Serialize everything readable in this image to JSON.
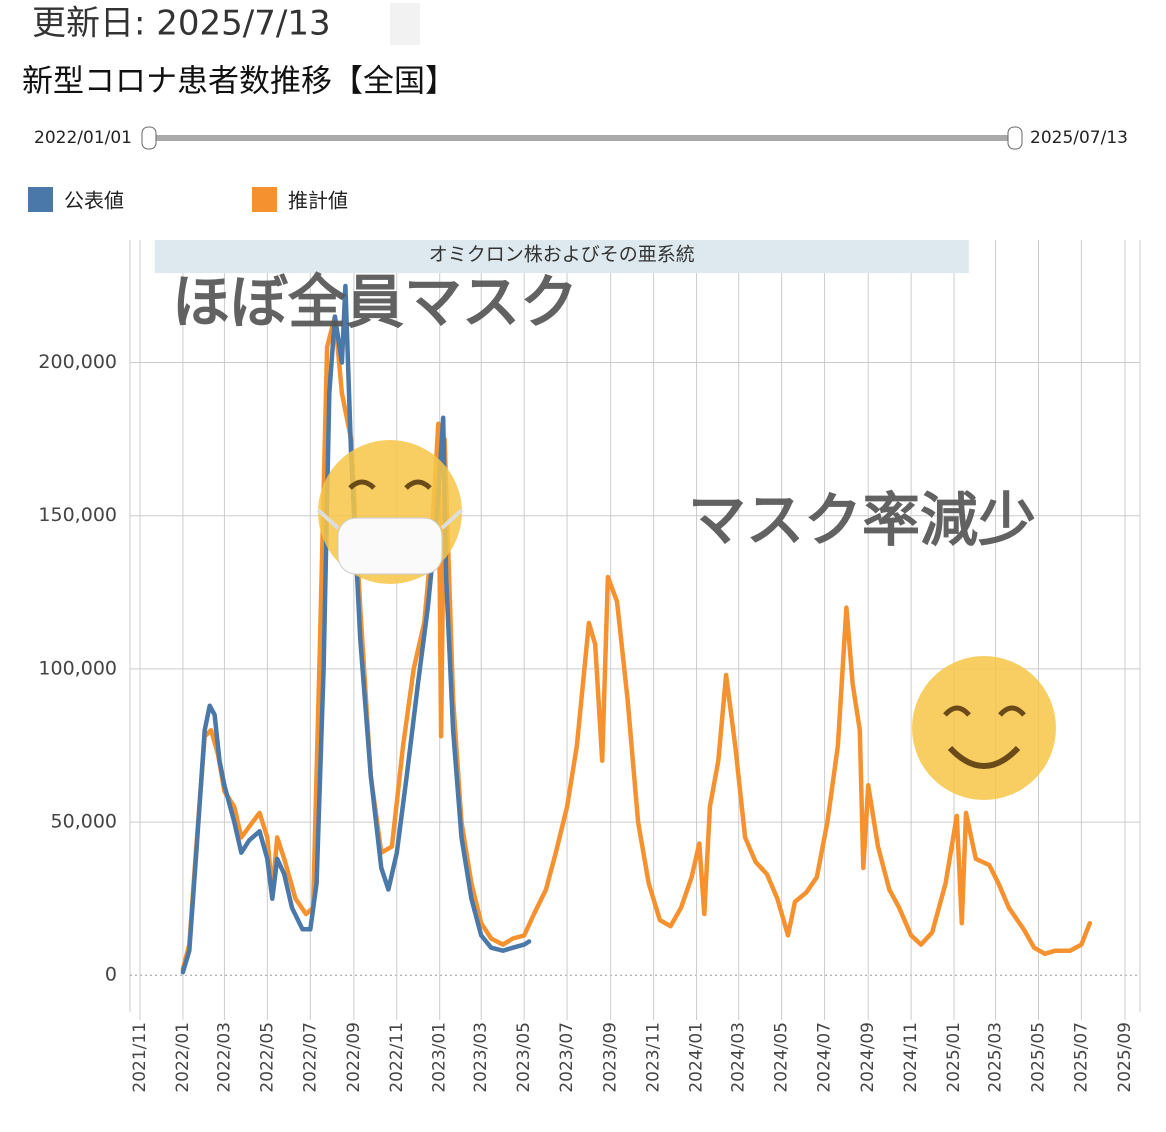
{
  "updated": "更新日: 2025/7/13",
  "chart_data": {
    "type": "line",
    "title": "新型コロナ患者数推移【全国】",
    "range_start": "2022/01/01",
    "range_end": "2025/07/13",
    "band": {
      "label": "オミクロン株およびその亜系統",
      "start": "2021/11/22",
      "end": "2025/01/22"
    },
    "annotations": [
      "ほぼ全員マスク",
      "マスク率減少"
    ],
    "xlim": [
      "2021/11/01",
      "2025/09/01"
    ],
    "xticks": [
      "2021/11",
      "2022/01",
      "2022/03",
      "2022/05",
      "2022/07",
      "2022/09",
      "2022/11",
      "2023/01",
      "2023/03",
      "2023/05",
      "2023/07",
      "2023/09",
      "2023/11",
      "2024/01",
      "2024/03",
      "2024/05",
      "2024/07",
      "2024/09",
      "2024/11",
      "2025/01",
      "2025/03",
      "2025/05",
      "2025/07",
      "2025/09"
    ],
    "ylim": [
      -12000,
      240000
    ],
    "yticks": [
      0,
      {
        "value": 50000,
        "label": "50,000"
      },
      {
        "value": 100000,
        "label": "100,000"
      },
      {
        "value": 150000,
        "label": "150,000"
      },
      {
        "value": 200000,
        "label": "200,000"
      }
    ],
    "grid": true,
    "series": [
      {
        "name": "公表値",
        "color": "#4a78a8",
        "x": [
          "2022/01/01",
          "2022/01/10",
          "2022/01/20",
          "2022/02/01",
          "2022/02/08",
          "2022/02/15",
          "2022/02/22",
          "2022/03/01",
          "2022/03/15",
          "2022/03/25",
          "2022/04/05",
          "2022/04/20",
          "2022/05/01",
          "2022/05/08",
          "2022/05/15",
          "2022/05/25",
          "2022/06/05",
          "2022/06/20",
          "2022/07/01",
          "2022/07/10",
          "2022/07/20",
          "2022/07/28",
          "2022/08/05",
          "2022/08/15",
          "2022/08/20",
          "2022/08/28",
          "2022/09/10",
          "2022/09/25",
          "2022/10/10",
          "2022/10/20",
          "2022/11/01",
          "2022/11/15",
          "2022/12/01",
          "2022/12/15",
          "2022/12/28",
          "2023/01/06",
          "2023/01/10",
          "2023/01/20",
          "2023/02/01",
          "2023/02/15",
          "2023/03/01",
          "2023/03/15",
          "2023/04/01",
          "2023/04/15",
          "2023/05/01",
          "2023/05/08"
        ],
        "values": [
          1000,
          8000,
          40000,
          80000,
          88000,
          85000,
          70000,
          62000,
          50000,
          40000,
          44000,
          47000,
          38000,
          25000,
          38000,
          33000,
          22000,
          15000,
          15000,
          30000,
          100000,
          190000,
          215000,
          200000,
          225000,
          170000,
          110000,
          65000,
          35000,
          28000,
          40000,
          65000,
          95000,
          120000,
          150000,
          182000,
          130000,
          80000,
          45000,
          25000,
          13000,
          9000,
          8000,
          9000,
          10000,
          11000
        ]
      },
      {
        "name": "推計値",
        "color": "#f5922f",
        "x": [
          "2022/01/01",
          "2022/01/10",
          "2022/01/20",
          "2022/02/01",
          "2022/02/10",
          "2022/02/20",
          "2022/03/01",
          "2022/03/15",
          "2022/03/25",
          "2022/04/10",
          "2022/04/20",
          "2022/05/01",
          "2022/05/08",
          "2022/05/15",
          "2022/05/25",
          "2022/06/10",
          "2022/06/25",
          "2022/07/05",
          "2022/07/15",
          "2022/07/25",
          "2022/08/05",
          "2022/08/15",
          "2022/08/28",
          "2022/09/10",
          "2022/09/25",
          "2022/10/10",
          "2022/10/25",
          "2022/11/10",
          "2022/11/25",
          "2022/12/10",
          "2022/12/20",
          "2022/12/30",
          "2023/01/03",
          "2023/01/08",
          "2023/01/20",
          "2023/02/01",
          "2023/02/15",
          "2023/03/01",
          "2023/03/15",
          "2023/04/01",
          "2023/04/15",
          "2023/05/01",
          "2023/05/15",
          "2023/06/01",
          "2023/06/15",
          "2023/07/01",
          "2023/07/15",
          "2023/08/01",
          "2023/08/10",
          "2023/08/20",
          "2023/08/28",
          "2023/09/10",
          "2023/09/25",
          "2023/10/10",
          "2023/10/25",
          "2023/11/10",
          "2023/11/25",
          "2023/12/10",
          "2023/12/25",
          "2024/01/05",
          "2024/01/12",
          "2024/01/20",
          "2024/02/01",
          "2024/02/12",
          "2024/02/25",
          "2024/03/10",
          "2024/03/25",
          "2024/04/10",
          "2024/04/25",
          "2024/05/10",
          "2024/05/20",
          "2024/06/05",
          "2024/06/20",
          "2024/07/05",
          "2024/07/20",
          "2024/08/01",
          "2024/08/10",
          "2024/08/20",
          "2024/08/25",
          "2024/09/01",
          "2024/09/15",
          "2024/10/01",
          "2024/10/15",
          "2024/11/01",
          "2024/11/15",
          "2024/12/01",
          "2024/12/20",
          "2025/01/05",
          "2025/01/12",
          "2025/01/18",
          "2025/02/01",
          "2025/02/20",
          "2025/03/05",
          "2025/03/20",
          "2025/04/10",
          "2025/04/25",
          "2025/05/10",
          "2025/05/25",
          "2025/06/15",
          "2025/07/01",
          "2025/07/13"
        ],
        "values": [
          2000,
          10000,
          42000,
          78000,
          80000,
          72000,
          60000,
          55000,
          45000,
          50000,
          53000,
          45000,
          27000,
          45000,
          38000,
          25000,
          20000,
          22000,
          110000,
          205000,
          215000,
          190000,
          175000,
          120000,
          65000,
          40000,
          42000,
          75000,
          100000,
          115000,
          140000,
          180000,
          78000,
          175000,
          90000,
          50000,
          30000,
          17000,
          12000,
          10000,
          12000,
          13000,
          20000,
          28000,
          40000,
          55000,
          75000,
          115000,
          108000,
          70000,
          130000,
          122000,
          90000,
          50000,
          30000,
          18000,
          16000,
          22000,
          32000,
          43000,
          20000,
          55000,
          70000,
          98000,
          75000,
          45000,
          37000,
          33000,
          25000,
          13000,
          24000,
          27000,
          32000,
          50000,
          75000,
          120000,
          95000,
          80000,
          35000,
          62000,
          42000,
          28000,
          22000,
          13000,
          10000,
          14000,
          30000,
          52000,
          17000,
          53000,
          38000,
          36000,
          30000,
          22000,
          15000,
          9000,
          7000,
          8000,
          8000,
          10000,
          17000
        ]
      }
    ]
  }
}
